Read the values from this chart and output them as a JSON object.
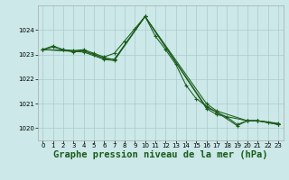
{
  "background_color": "#cce8e8",
  "grid_color": "#aacccc",
  "line_color": "#1a5c1a",
  "title": "Graphe pression niveau de la mer (hPa)",
  "title_fontsize": 7.5,
  "xlim": [
    -0.5,
    23.5
  ],
  "ylim": [
    1019.5,
    1025.0
  ],
  "yticks": [
    1020,
    1021,
    1022,
    1023,
    1024
  ],
  "xticks": [
    0,
    1,
    2,
    3,
    4,
    5,
    6,
    7,
    8,
    9,
    10,
    11,
    12,
    13,
    14,
    15,
    16,
    17,
    18,
    19,
    20,
    21,
    22,
    23
  ],
  "curve1_x": [
    0,
    1,
    2,
    3,
    4,
    5,
    6,
    7,
    8,
    9,
    10,
    11,
    12,
    13,
    14,
    15,
    16,
    17,
    18,
    19,
    20,
    21,
    22,
    23
  ],
  "curve1_y": [
    1023.2,
    1023.35,
    1023.2,
    1023.15,
    1023.2,
    1023.05,
    1022.9,
    1023.05,
    1023.55,
    1024.05,
    1024.55,
    1023.75,
    1023.2,
    1022.6,
    1021.75,
    1021.2,
    1020.9,
    1020.65,
    1020.45,
    1020.15,
    1020.3,
    1020.3,
    1020.25,
    1020.15
  ],
  "curve2_x": [
    0,
    1,
    2,
    3,
    4,
    5,
    6,
    7,
    10,
    16,
    17,
    19,
    20,
    21,
    23
  ],
  "curve2_y": [
    1023.2,
    1023.3,
    1023.2,
    1023.1,
    1023.15,
    1023.0,
    1022.85,
    1022.8,
    1024.55,
    1020.85,
    1020.65,
    1020.1,
    1020.3,
    1020.3,
    1020.15
  ],
  "curve3_x": [
    0,
    4,
    6,
    7,
    10,
    16,
    17,
    20,
    21,
    23
  ],
  "curve3_y": [
    1023.2,
    1023.1,
    1022.8,
    1022.75,
    1024.55,
    1020.8,
    1020.55,
    1020.3,
    1020.3,
    1020.15
  ],
  "curve4_x": [
    0,
    4,
    6,
    7,
    10,
    16,
    17,
    20,
    21,
    23
  ],
  "curve4_y": [
    1023.2,
    1023.15,
    1022.85,
    1022.8,
    1024.55,
    1021.0,
    1020.7,
    1020.3,
    1020.3,
    1020.2
  ]
}
